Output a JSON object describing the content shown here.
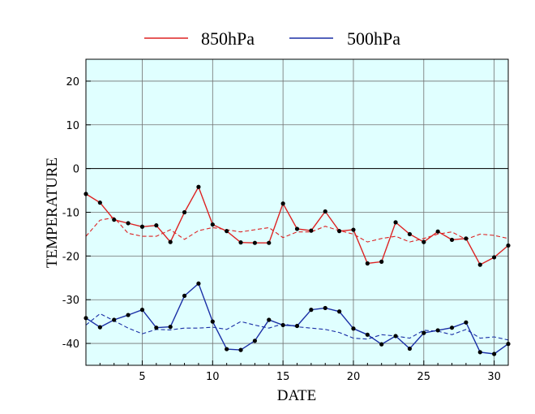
{
  "chart_data": {
    "type": "line",
    "xlabel": "DATE",
    "ylabel": "TEMPERATURE",
    "xlim": [
      1,
      31
    ],
    "ylim": [
      -45,
      25
    ],
    "xticks": [
      5,
      10,
      15,
      20,
      25,
      30
    ],
    "yticks": [
      20,
      10,
      0,
      -10,
      -20,
      -30,
      -40
    ],
    "grid": true,
    "zero_line": true,
    "background_color": "#e0ffff",
    "legend_position": "top-center",
    "x": [
      1,
      2,
      3,
      4,
      5,
      6,
      7,
      8,
      9,
      10,
      11,
      12,
      13,
      14,
      15,
      16,
      17,
      18,
      19,
      20,
      21,
      22,
      23,
      24,
      25,
      26,
      27,
      28,
      29,
      30,
      31
    ],
    "series": [
      {
        "name": "850hPa",
        "color": "#dd2222",
        "style": "solid",
        "markers": true,
        "values": [
          -5.8,
          -7.8,
          -11.7,
          -12.5,
          -13.3,
          -13.0,
          -16.8,
          -10.0,
          -4.2,
          -12.8,
          -14.3,
          -16.9,
          -17.0,
          -17.0,
          -8.0,
          -13.8,
          -14.2,
          -9.8,
          -14.3,
          -14.0,
          -21.7,
          -21.3,
          -12.3,
          -15.0,
          -16.8,
          -14.4,
          -16.3,
          -16.0,
          -22.0,
          -20.3,
          -17.6
        ]
      },
      {
        "name": "500hPa",
        "color": "#1a2fa6",
        "style": "solid",
        "markers": true,
        "values": [
          -34.2,
          -36.3,
          -34.6,
          -33.5,
          -32.3,
          -36.4,
          -36.2,
          -29.1,
          -26.3,
          -35.0,
          -41.3,
          -41.5,
          -39.4,
          -34.6,
          -35.8,
          -36.0,
          -32.3,
          -31.9,
          -32.7,
          -36.6,
          -38.0,
          -40.2,
          -38.3,
          -41.2,
          -37.6,
          -37.0,
          -36.4,
          -35.2,
          -42.0,
          -42.4,
          -40.1
        ]
      },
      {
        "color": "#dd2222",
        "style": "dashed",
        "markers": false,
        "values": [
          -15.5,
          -11.8,
          -11.2,
          -14.8,
          -15.5,
          -15.5,
          -14.0,
          -16.2,
          -14.2,
          -13.5,
          -14.0,
          -14.5,
          -14.0,
          -13.5,
          -15.8,
          -14.5,
          -14.5,
          -13.2,
          -14.2,
          -15.0,
          -16.8,
          -16.0,
          -15.5,
          -16.8,
          -16.0,
          -15.0,
          -14.5,
          -16.2,
          -15.0,
          -15.3,
          -16.0
        ]
      },
      {
        "color": "#1a2fa6",
        "style": "dashed",
        "markers": false,
        "values": [
          -35.8,
          -33.2,
          -34.8,
          -36.5,
          -37.8,
          -36.8,
          -36.9,
          -36.5,
          -36.5,
          -36.3,
          -36.8,
          -35.0,
          -35.8,
          -36.5,
          -35.5,
          -36.2,
          -36.5,
          -36.8,
          -37.5,
          -38.8,
          -39.0,
          -38.0,
          -38.3,
          -38.8,
          -37.0,
          -37.2,
          -38.0,
          -36.8,
          -38.8,
          -38.5,
          -39.2
        ]
      }
    ]
  }
}
